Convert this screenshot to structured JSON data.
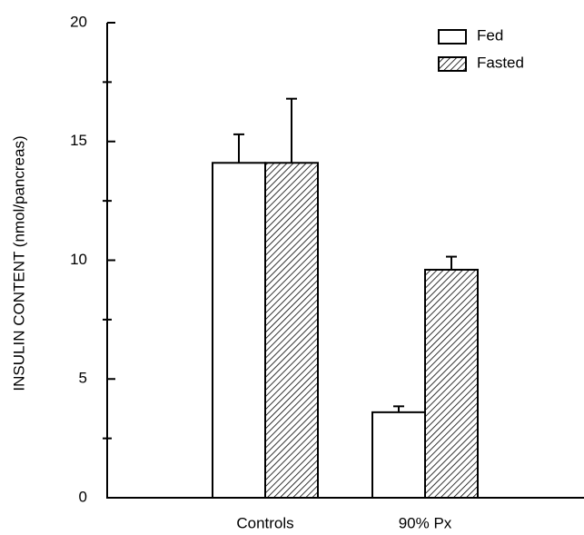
{
  "chart_data": {
    "type": "bar",
    "y_label": "INSULIN CONTENT (nmol/pancreas)",
    "categories": [
      "Controls",
      "90% Px"
    ],
    "series": [
      {
        "name": "Fed",
        "color": "#ffffff",
        "hatch": false,
        "values": [
          14.1,
          3.6
        ],
        "errors": [
          1.2,
          0.25
        ]
      },
      {
        "name": "Fasted",
        "color": "#ffffff",
        "hatch": true,
        "values": [
          14.1,
          9.6
        ],
        "errors": [
          2.7,
          0.55
        ]
      }
    ],
    "ylim": [
      0,
      20
    ],
    "yticks": [
      0,
      5,
      10,
      15,
      20
    ],
    "yminorticks": [
      2.5,
      7.5,
      12.5,
      17.5
    ],
    "grid": false,
    "legend": "upper right"
  }
}
